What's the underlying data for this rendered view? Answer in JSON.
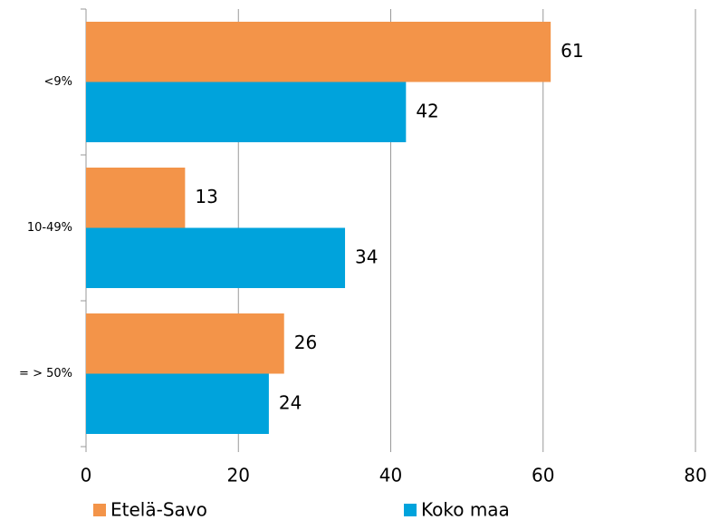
{
  "chart_data": {
    "type": "bar",
    "orientation": "horizontal",
    "categories": [
      "<9%",
      "10-49%",
      "= > 50%"
    ],
    "series": [
      {
        "name": "Etelä-Savo",
        "color": "#f39449",
        "values": [
          61,
          13,
          26
        ]
      },
      {
        "name": "Koko maa",
        "color": "#00a3dc",
        "values": [
          42,
          34,
          24
        ]
      }
    ],
    "xlim": [
      0,
      80
    ],
    "xticks": [
      0,
      20,
      40,
      60,
      80
    ],
    "grid": true,
    "legend": "bottom"
  }
}
